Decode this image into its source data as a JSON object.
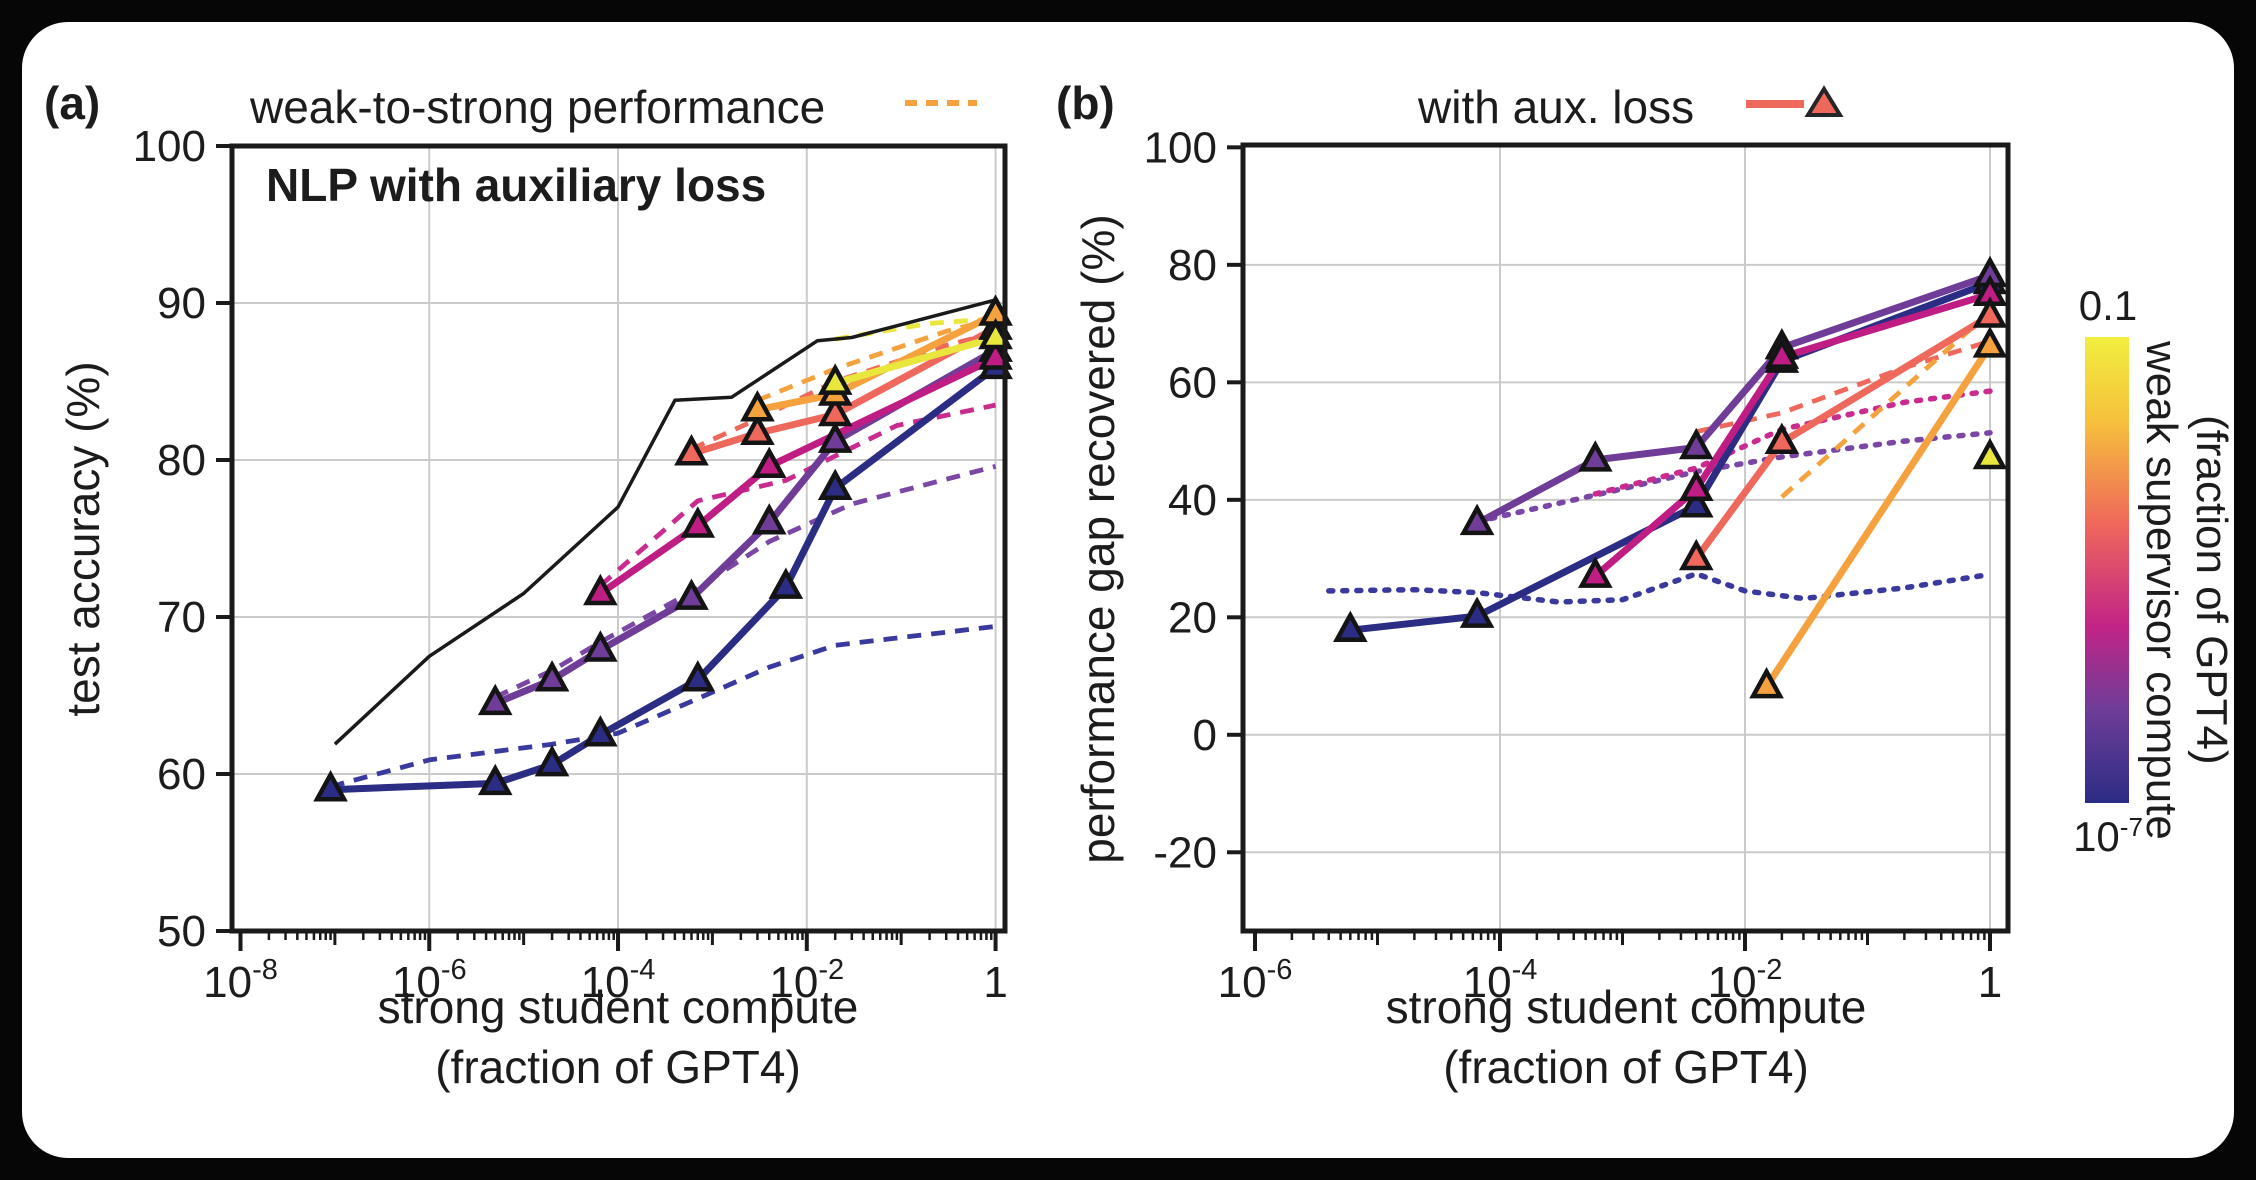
{
  "figure": {
    "panel_a": {
      "letter": "(a)",
      "title": "NLP with auxiliary loss",
      "ylabel": "test accuracy (%)",
      "xlabel_line1": "strong student compute",
      "xlabel_line2": "(fraction of GPT4)"
    },
    "panel_b": {
      "letter": "(b)",
      "ylabel": "performance gap recovered (%)",
      "xlabel_line1": "strong student compute",
      "xlabel_line2": "(fraction of GPT4)"
    },
    "legend_a": {
      "label": "weak-to-strong performance"
    },
    "legend_b": {
      "label": "with aux. loss"
    },
    "colorbar": {
      "top_label": "0.1",
      "bottom_label": "10^-7",
      "title_line1": "weak supervisor compute",
      "title_line2": "(fraction of GPT4)",
      "stops": [
        [
          "#f1ee3f",
          0
        ],
        [
          "#f6c13c",
          18
        ],
        [
          "#ef685b",
          40
        ],
        [
          "#c22486",
          62
        ],
        [
          "#6e3d98",
          80
        ],
        [
          "#2b2c84",
          100
        ]
      ]
    },
    "colors": {
      "navy": "#2b2d84",
      "purple": "#6f3d98",
      "magenta": "#c01d84",
      "salmon": "#ef685c",
      "orange": "#f5a23e",
      "yellow": "#e9e63e",
      "ceiling": "#1a1a1a",
      "grid": "#cbcbcb",
      "accent_dash_navy": "#3a3a9e",
      "accent_dash_purple": "#7a47a5",
      "accent_dash_magenta": "#c92b8e"
    }
  },
  "chart_data": [
    {
      "id": "a",
      "type": "line",
      "title": "NLP with auxiliary loss",
      "xlabel": "strong student compute (fraction of GPT4)",
      "ylabel": "test accuracy (%)",
      "x_scale": "log",
      "xlim": [
        1e-08,
        1.3
      ],
      "ylim": [
        50,
        100
      ],
      "x_ticks": [
        {
          "v": 1e-08,
          "label": "10^-8"
        },
        {
          "v": 1e-06,
          "label": "10^-6"
        },
        {
          "v": 0.0001,
          "label": "10^-4"
        },
        {
          "v": 0.01,
          "label": "10^-2"
        },
        {
          "v": 1,
          "label": "1"
        }
      ],
      "y_ticks": [
        50,
        60,
        70,
        80,
        90,
        100
      ],
      "series": [
        {
          "name": "weak-to-strong naive, supervisor 1e-7",
          "color": "#3a3a9e",
          "style": "dashed",
          "width": 4.8,
          "markers": false,
          "points": [
            [
              9e-08,
              59.2
            ],
            [
              1e-06,
              60.9
            ],
            [
              2e-05,
              61.9
            ],
            [
              0.0001,
              62.6
            ],
            [
              0.0007,
              64.8
            ],
            [
              0.004,
              66.8
            ],
            [
              0.02,
              68.2
            ],
            [
              1,
              69.4
            ]
          ]
        },
        {
          "name": "weak-to-strong naive, supervisor 1e-6",
          "color": "#7a47a5",
          "style": "dashed",
          "width": 4.8,
          "markers": false,
          "points": [
            [
              5e-06,
              64.9
            ],
            [
              2e-05,
              66.6
            ],
            [
              6.5e-05,
              68.4
            ],
            [
              0.0006,
              71.6
            ],
            [
              0.004,
              74.8
            ],
            [
              0.03,
              77.2
            ],
            [
              1,
              79.6
            ]
          ]
        },
        {
          "name": "weak-to-strong naive, supervisor 1e-5",
          "color": "#c92b8e",
          "style": "dashed",
          "width": 4.8,
          "markers": false,
          "points": [
            [
              6.5e-05,
              72.0
            ],
            [
              0.0007,
              77.4
            ],
            [
              0.006,
              78.7
            ],
            [
              0.09,
              82.2
            ],
            [
              1,
              83.5
            ]
          ]
        },
        {
          "name": "weak-to-strong naive, supervisor 1e-4",
          "color": "#ef685c",
          "style": "dashed",
          "width": 4.8,
          "markers": false,
          "points": [
            [
              0.0006,
              80.7
            ],
            [
              0.003,
              82.6
            ],
            [
              0.02,
              85.0
            ],
            [
              0.3,
              87.3
            ],
            [
              1,
              88.1
            ]
          ]
        },
        {
          "name": "weak-to-strong naive, supervisor 1e-3",
          "color": "#f5a23e",
          "style": "dashed",
          "width": 4.8,
          "markers": false,
          "points": [
            [
              0.003,
              83.8
            ],
            [
              0.02,
              85.8
            ],
            [
              0.3,
              88.2
            ],
            [
              1,
              89.0
            ]
          ]
        },
        {
          "name": "weak-to-strong naive, supervisor 1e-2",
          "color": "#e9e63e",
          "style": "dashed",
          "width": 4.8,
          "markers": false,
          "points": [
            [
              0.02,
              87.7
            ],
            [
              0.2,
              88.7
            ],
            [
              1,
              89.0
            ]
          ]
        },
        {
          "name": "strong ceiling (ground truth)",
          "color": "#1a1a1a",
          "style": "solid",
          "width": 3.5,
          "markers": false,
          "points": [
            [
              1e-07,
              61.9
            ],
            [
              1e-06,
              67.5
            ],
            [
              1e-05,
              71.5
            ],
            [
              0.0001,
              77.0
            ],
            [
              0.0004,
              83.8
            ],
            [
              0.0016,
              84.0
            ],
            [
              0.013,
              87.6
            ],
            [
              0.03,
              87.8
            ],
            [
              1,
              90.2
            ]
          ]
        },
        {
          "name": "with aux. loss, supervisor 1e-7",
          "color": "#2b2d84",
          "style": "solid",
          "width": 7,
          "markers": true,
          "points": [
            [
              9e-08,
              59.0
            ],
            [
              5e-06,
              59.4
            ],
            [
              2e-05,
              60.6
            ],
            [
              6.5e-05,
              62.5
            ],
            [
              0.0007,
              66.0
            ],
            [
              0.006,
              71.9
            ],
            [
              0.02,
              78.2
            ],
            [
              1,
              85.9
            ]
          ]
        },
        {
          "name": "with aux. loss, supervisor 1e-6",
          "color": "#6f3d98",
          "style": "solid",
          "width": 7,
          "markers": true,
          "points": [
            [
              5e-06,
              64.5
            ],
            [
              2e-05,
              66.0
            ],
            [
              6.5e-05,
              67.9
            ],
            [
              0.0006,
              71.2
            ],
            [
              0.004,
              76.0
            ],
            [
              0.02,
              81.2
            ],
            [
              1,
              87.0
            ]
          ]
        },
        {
          "name": "with aux. loss, supervisor 1e-5",
          "color": "#c01d84",
          "style": "solid",
          "width": 7,
          "markers": true,
          "points": [
            [
              6.5e-05,
              71.5
            ],
            [
              0.0007,
              75.8
            ],
            [
              0.004,
              79.6
            ],
            [
              1,
              86.5
            ]
          ]
        },
        {
          "name": "with aux. loss, supervisor 1e-4",
          "color": "#ef685c",
          "style": "solid",
          "width": 7,
          "markers": true,
          "points": [
            [
              0.0006,
              80.4
            ],
            [
              0.003,
              81.7
            ],
            [
              0.02,
              82.9
            ],
            [
              1,
              88.4
            ]
          ]
        },
        {
          "name": "with aux. loss, supervisor 1e-3",
          "color": "#f5a23e",
          "style": "solid",
          "width": 7,
          "markers": true,
          "points": [
            [
              0.003,
              83.2
            ],
            [
              0.02,
              84.2
            ],
            [
              1,
              89.3
            ]
          ]
        },
        {
          "name": "with aux. loss, supervisor 1e-2",
          "color": "#e9e63e",
          "style": "solid",
          "width": 7,
          "markers": true,
          "points": [
            [
              0.02,
              84.9
            ],
            [
              1,
              87.8
            ]
          ]
        }
      ]
    },
    {
      "id": "b",
      "type": "line",
      "xlabel": "strong student compute (fraction of GPT4)",
      "ylabel": "performance gap recovered (%)",
      "x_scale": "log",
      "xlim": [
        1e-06,
        1.4
      ],
      "ylim": [
        -33,
        100
      ],
      "x_ticks": [
        {
          "v": 1e-06,
          "label": "10^-6"
        },
        {
          "v": 0.0001,
          "label": "10^-4"
        },
        {
          "v": 0.01,
          "label": "10^-2"
        },
        {
          "v": 1,
          "label": "1"
        }
      ],
      "y_ticks": [
        -20,
        0,
        20,
        40,
        60,
        80,
        100
      ],
      "series": [
        {
          "name": "naive PGR, supervisor 1e-7",
          "color": "#3a3a9e",
          "style": "dotted",
          "width": 5.5,
          "markers": false,
          "points": [
            [
              4e-06,
              24.5
            ],
            [
              2e-05,
              24.7
            ],
            [
              6.5e-05,
              24.2
            ],
            [
              0.0003,
              22.6
            ],
            [
              0.001,
              23.0
            ],
            [
              0.004,
              27.4
            ],
            [
              0.01,
              24.5
            ],
            [
              0.03,
              23.2
            ],
            [
              0.2,
              25.0
            ],
            [
              1,
              27.3
            ]
          ]
        },
        {
          "name": "naive PGR, supervisor 1e-6",
          "color": "#7a47a5",
          "style": "dotted",
          "width": 5.5,
          "markers": false,
          "points": [
            [
              6.5e-05,
              36.3
            ],
            [
              0.0006,
              40.8
            ],
            [
              0.004,
              44.8
            ],
            [
              0.02,
              47.3
            ],
            [
              0.2,
              50.0
            ],
            [
              1,
              51.4
            ]
          ]
        },
        {
          "name": "naive PGR, supervisor 1e-5",
          "color": "#c92b8e",
          "style": "dotted",
          "width": 5.5,
          "markers": false,
          "points": [
            [
              0.0006,
              41.0
            ],
            [
              0.004,
              45.4
            ],
            [
              0.02,
              52.0
            ],
            [
              0.2,
              56.6
            ],
            [
              1,
              58.5
            ]
          ]
        },
        {
          "name": "naive PGR, supervisor 1e-4",
          "color": "#ef685c",
          "style": "dashed",
          "width": 4.8,
          "markers": false,
          "points": [
            [
              0.004,
              51.6
            ],
            [
              0.02,
              54.8
            ],
            [
              0.2,
              62.5
            ],
            [
              1,
              67.0
            ]
          ]
        },
        {
          "name": "naive PGR, supervisor 1e-3",
          "color": "#f5a23e",
          "style": "dashed",
          "width": 4.8,
          "markers": false,
          "points": [
            [
              0.02,
              40.5
            ],
            [
              1,
              72.0
            ]
          ]
        },
        {
          "name": "aux loss PGR, supervisor 1e-7",
          "color": "#2b2d84",
          "style": "solid",
          "width": 7,
          "markers": true,
          "points": [
            [
              6e-06,
              17.8
            ],
            [
              6.5e-05,
              20.2
            ],
            [
              0.004,
              39.0
            ],
            [
              0.02,
              63.6
            ],
            [
              1,
              77.0
            ]
          ]
        },
        {
          "name": "aux loss PGR, supervisor 1e-6",
          "color": "#6f3d98",
          "style": "solid",
          "width": 7,
          "markers": true,
          "points": [
            [
              6.5e-05,
              36.0
            ],
            [
              0.0006,
              46.8
            ],
            [
              0.004,
              48.9
            ],
            [
              0.02,
              65.9
            ],
            [
              1,
              78.2
            ]
          ]
        },
        {
          "name": "aux loss PGR, supervisor 1e-5",
          "color": "#c01d84",
          "style": "solid",
          "width": 7,
          "markers": true,
          "points": [
            [
              0.0006,
              27.0
            ],
            [
              0.004,
              41.8
            ],
            [
              0.02,
              64.3
            ],
            [
              1,
              75.0
            ]
          ]
        },
        {
          "name": "aux loss PGR, supervisor 1e-4",
          "color": "#ef685c",
          "style": "solid",
          "width": 7,
          "markers": true,
          "points": [
            [
              0.004,
              30.0
            ],
            [
              0.02,
              49.8
            ],
            [
              1,
              71.3
            ]
          ]
        },
        {
          "name": "aux loss PGR, supervisor 1e-3",
          "color": "#f5a23e",
          "style": "solid",
          "width": 7,
          "markers": true,
          "points": [
            [
              0.015,
              8.2
            ],
            [
              1,
              66.2
            ]
          ]
        },
        {
          "name": "aux loss PGR, supervisor 1e-2",
          "color": "#e9e63e",
          "style": "solid",
          "width": 7,
          "markers": true,
          "points": [
            [
              1,
              47.2
            ]
          ]
        }
      ]
    }
  ]
}
